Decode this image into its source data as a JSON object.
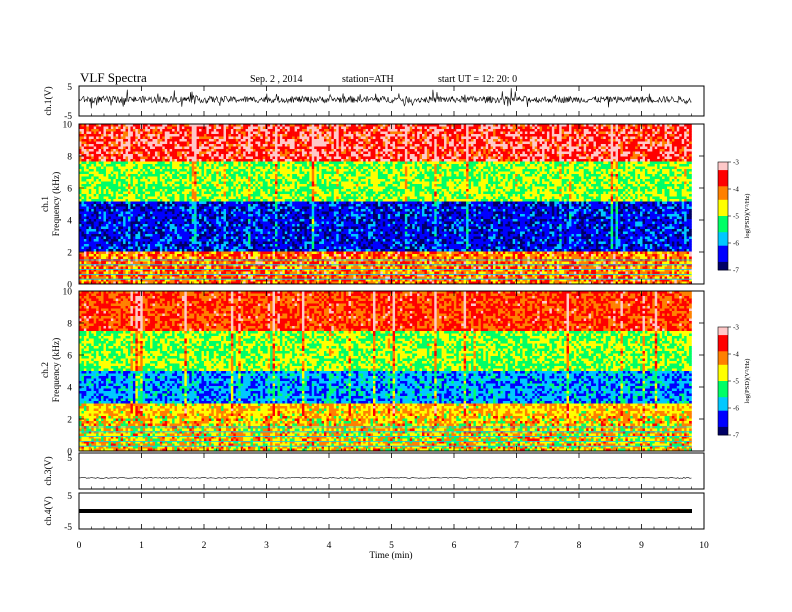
{
  "header": {
    "title": "VLF  Spectra",
    "date": "Sep. 2  , 2014",
    "station": "station=ATH",
    "start_ut": "start  UT  =    12: 20: 0"
  },
  "chart_data": [
    {
      "type": "line",
      "panel": "ch1-waveform",
      "ylabel": "ch.1(V)",
      "yticks": [
        "5",
        "-5"
      ],
      "ylim": [
        -5,
        5
      ],
      "x_range_min": [
        0,
        9.8
      ],
      "description_of_signal": "noisy broadband waveform near +0.5 V"
    },
    {
      "type": "heatmap",
      "panel": "ch1-spectrogram",
      "ylabel_line1": "ch.1",
      "ylabel_line2": "Frequency  (kHz)",
      "yticks": [
        "0",
        "2",
        "4",
        "6",
        "8",
        "10"
      ],
      "ylim_khz": [
        0,
        10
      ],
      "x_range_min": [
        0,
        9.8
      ],
      "colorbar": {
        "label": "log(PSD)(V²/Hz)",
        "ticks": [
          "-3",
          "-4",
          "-5",
          "-6",
          "-7"
        ],
        "range": [
          -7,
          -3
        ]
      },
      "bands_khz": [
        {
          "from": 0.0,
          "to": 2.1,
          "level": -4.0
        },
        {
          "from": 2.1,
          "to": 5.2,
          "level": -6.5
        },
        {
          "from": 5.2,
          "to": 7.6,
          "level": -5.0
        },
        {
          "from": 7.6,
          "to": 10.0,
          "level": -3.5
        }
      ]
    },
    {
      "type": "heatmap",
      "panel": "ch2-spectrogram",
      "ylabel_line1": "ch.2",
      "ylabel_line2": "Frequency  (kHz)",
      "yticks": [
        "0",
        "2",
        "4",
        "6",
        "8",
        "10"
      ],
      "ylim_khz": [
        0,
        10
      ],
      "x_range_min": [
        0,
        9.8
      ],
      "colorbar": {
        "label": "log(PSD)(V²/Hz)",
        "ticks": [
          "-3",
          "-4",
          "-5",
          "-6",
          "-7"
        ],
        "range": [
          -7,
          -3
        ]
      },
      "bands_khz": [
        {
          "from": 0.0,
          "to": 3.0,
          "level": -4.5
        },
        {
          "from": 3.0,
          "to": 5.0,
          "level": -6.0
        },
        {
          "from": 5.0,
          "to": 7.5,
          "level": -5.0
        },
        {
          "from": 7.5,
          "to": 10.0,
          "level": -3.8
        }
      ]
    },
    {
      "type": "line",
      "panel": "ch3-waveform",
      "ylabel": "ch.3(V)",
      "yticks": [
        "5"
      ],
      "ylim": [
        -5,
        5
      ],
      "x_range_min": [
        0,
        9.8
      ],
      "level_v": 0.0
    },
    {
      "type": "line",
      "panel": "ch4-waveform",
      "ylabel": "ch.4(V)",
      "yticks": [
        "5",
        "-5"
      ],
      "ylim": [
        -5,
        5
      ],
      "x_range_min": [
        0,
        9.8
      ],
      "level_v": 0.0
    }
  ],
  "xaxis": {
    "label": "Time  (min)",
    "ticks": [
      "0",
      "1",
      "2",
      "3",
      "4",
      "5",
      "6",
      "7",
      "8",
      "9",
      "10"
    ],
    "xlim": [
      0,
      10
    ]
  },
  "colors": {
    "axis": "#000000",
    "colormap": [
      "#000066",
      "#0000ff",
      "#00c8ff",
      "#00ff66",
      "#ffff00",
      "#ff8000",
      "#ff0000",
      "#ffc8c8"
    ]
  }
}
